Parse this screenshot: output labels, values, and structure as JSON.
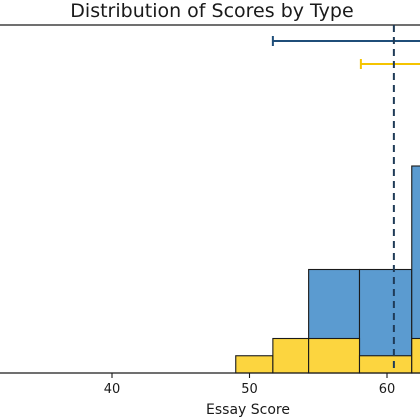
{
  "chart_data": {
    "type": "histogram",
    "title": "Distribution of Scores by Type",
    "xlabel": "Essay Score",
    "ylabel": "",
    "xlim": [
      27,
      66
    ],
    "x_ticks": [
      40,
      50,
      60
    ],
    "x_tick_labels": [
      "40",
      "50",
      "60"
    ],
    "grid": false,
    "legend": "none",
    "series": [
      {
        "color": "#5b9bd0",
        "bins": [
          {
            "x0": 54.3,
            "x1": 58.0,
            "count": 3
          },
          {
            "x0": 58.0,
            "x1": 61.8,
            "count": 3
          },
          {
            "x0": 61.8,
            "x1": 65.5,
            "count": 6
          }
        ]
      },
      {
        "color": "#fcd53f",
        "bins": [
          {
            "x0": 49.0,
            "x1": 51.7,
            "count": 0.5
          },
          {
            "x0": 51.7,
            "x1": 54.3,
            "count": 1
          },
          {
            "x0": 54.3,
            "x1": 58.0,
            "count": 1
          },
          {
            "x0": 58.0,
            "x1": 61.8,
            "count": 0.5
          },
          {
            "x0": 61.8,
            "x1": 65.5,
            "count": 1
          }
        ]
      }
    ],
    "ylim": [
      0,
      6.5
    ],
    "error_bars": [
      {
        "color": "#1f4e79",
        "low": 51.7,
        "high": 66.5,
        "row": 0
      },
      {
        "color": "#f5c400",
        "low": 58.1,
        "high": 66.5,
        "row": 1
      }
    ],
    "reference_line": {
      "x": 60.5,
      "color": "#1f3b57",
      "style": "dashed"
    }
  }
}
